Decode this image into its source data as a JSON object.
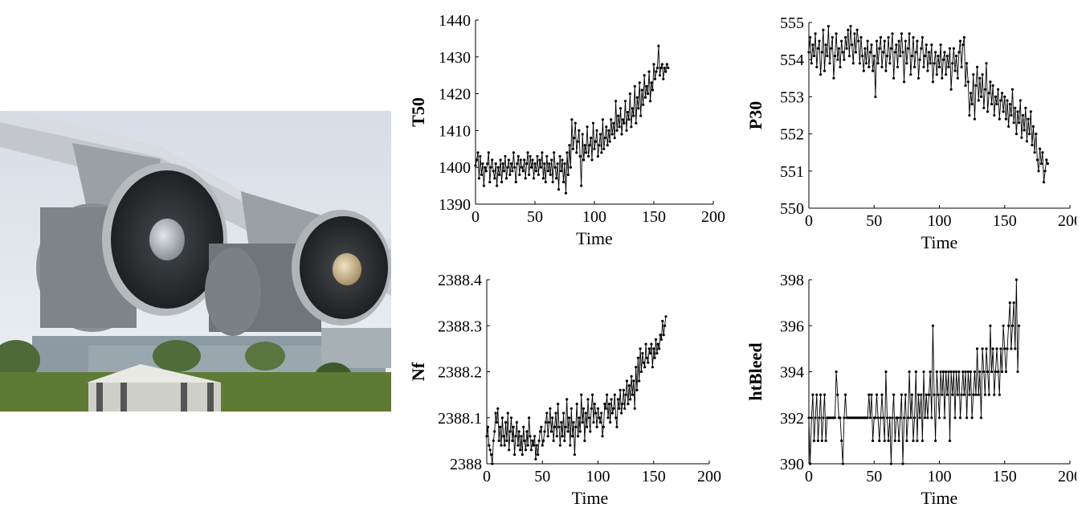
{
  "photo": {
    "subject": "twin turbofan jet engines under an aircraft wing",
    "colors": {
      "sky": "#dfe6ee",
      "grass": "#5f7a34",
      "nacelle": "#8a8f94",
      "spinner": "#c8b48a"
    }
  },
  "chart_data": [
    {
      "type": "line",
      "xlabel": "Time",
      "ylabel": "T50",
      "xlim": [
        0,
        200
      ],
      "ylim": [
        1390,
        1440
      ],
      "xticks": [
        0,
        50,
        100,
        150,
        200
      ],
      "yticks": [
        1390,
        1400,
        1410,
        1420,
        1430,
        1440
      ],
      "series": [
        {
          "values": [
            1400.5,
            1402,
            1404,
            1397,
            1403,
            1398,
            1401,
            1395,
            1400,
            1399,
            1401,
            1404,
            1396,
            1400,
            1402,
            1399,
            1397,
            1401,
            1395,
            1400,
            1398,
            1402,
            1396,
            1401,
            1399,
            1403,
            1397,
            1400,
            1402,
            1398,
            1401,
            1399,
            1404,
            1400,
            1396,
            1401,
            1403,
            1398,
            1402,
            1400,
            1399,
            1402,
            1397,
            1401,
            1404,
            1398,
            1403,
            1400,
            1402,
            1397,
            1401,
            1399,
            1403,
            1398,
            1402,
            1400,
            1404,
            1397,
            1401,
            1396,
            1403,
            1399,
            1401,
            1398,
            1402,
            1396,
            1404,
            1400,
            1397,
            1401,
            1394,
            1403,
            1399,
            1402,
            1396,
            1401,
            1393,
            1404,
            1398,
            1406,
            1400,
            1413,
            1405,
            1408,
            1412,
            1404,
            1407,
            1410,
            1403,
            1395,
            1409,
            1402,
            1406,
            1404,
            1411,
            1403,
            1406,
            1408,
            1402,
            1412,
            1405,
            1407,
            1410,
            1403,
            1406,
            1409,
            1404,
            1413,
            1405,
            1408,
            1411,
            1406,
            1410,
            1407,
            1413,
            1409,
            1412,
            1408,
            1418,
            1410,
            1414,
            1411,
            1416,
            1409,
            1413,
            1412,
            1418,
            1410,
            1415,
            1413,
            1420,
            1411,
            1416,
            1414,
            1422,
            1412,
            1419,
            1416,
            1423,
            1414,
            1421,
            1417,
            1425,
            1419,
            1422,
            1420,
            1426,
            1418,
            1423,
            1421,
            1428,
            1424,
            1426,
            1427,
            1433,
            1425,
            1427,
            1428,
            1424,
            1427,
            1426,
            1428,
            1427
          ]
        }
      ]
    },
    {
      "type": "line",
      "xlabel": "Time",
      "ylabel": "P30",
      "xlim": [
        0,
        200
      ],
      "ylim": [
        550,
        555
      ],
      "xticks": [
        0,
        50,
        100,
        150,
        200
      ],
      "yticks": [
        550,
        551,
        552,
        553,
        554,
        555
      ],
      "series": [
        {
          "values": [
            554.2,
            554.6,
            553.9,
            554.4,
            554.1,
            554.7,
            553.8,
            554.3,
            554.5,
            553.6,
            554.2,
            554.8,
            553.7,
            554.4,
            554.1,
            554.9,
            553.9,
            554.3,
            554.6,
            553.5,
            554.1,
            554.7,
            554.0,
            554.3,
            553.8,
            554.5,
            554.2,
            554.0,
            554.6,
            554.3,
            554.8,
            554.1,
            554.9,
            554.4,
            553.9,
            554.7,
            554.2,
            554.8,
            554.5,
            553.9,
            554.6,
            554.1,
            553.7,
            554.3,
            553.9,
            554.5,
            553.8,
            554.2,
            554.4,
            553.7,
            554.1,
            553.0,
            554.5,
            553.9,
            554.3,
            554.6,
            553.8,
            554.2,
            554.5,
            553.7,
            554.1,
            554.6,
            553.9,
            554.3,
            554.7,
            553.5,
            554.2,
            554.4,
            553.8,
            554.5,
            554.1,
            554.7,
            554.2,
            553.4,
            554.5,
            553.9,
            554.3,
            554.7,
            553.6,
            554.1,
            554.6,
            553.8,
            554.2,
            554.5,
            553.5,
            554.0,
            554.3,
            554.6,
            553.8,
            554.1,
            554.4,
            553.7,
            554.2,
            553.9,
            554.4,
            553.4,
            553.9,
            554.2,
            553.6,
            554.1,
            553.8,
            554.4,
            553.5,
            554.0,
            554.2,
            553.6,
            554.1,
            553.8,
            554.3,
            553.2,
            553.9,
            554.3,
            553.7,
            554.1,
            553.5,
            554.2,
            554.5,
            553.8,
            554.4,
            554.6,
            553.3,
            553.9,
            553.4,
            552.5,
            553.1,
            552.8,
            553.6,
            552.4,
            553.3,
            553.8,
            552.9,
            553.5,
            553.0,
            553.6,
            552.7,
            553.2,
            553.9,
            552.6,
            553.1,
            553.4,
            552.8,
            553.3,
            552.5,
            553.0,
            552.8,
            553.2,
            552.4,
            552.9,
            553.1,
            552.6,
            553.0,
            552.4,
            552.9,
            552.2,
            552.8,
            552.5,
            553.2,
            552.3,
            552.7,
            552.0,
            552.6,
            552.3,
            552.9,
            551.9,
            552.5,
            552.1,
            552.7,
            551.8,
            552.4,
            552.0,
            552.6,
            551.7,
            552.2,
            551.5,
            552.0,
            551.3,
            551.0,
            551.6,
            551.2,
            551.5,
            550.7,
            551.0,
            551.3,
            551.2
          ]
        }
      ]
    },
    {
      "type": "line",
      "xlabel": "Time",
      "ylabel": "Nf",
      "xlim": [
        0,
        200
      ],
      "ylim": [
        2388,
        2388.4
      ],
      "xticks": [
        0,
        50,
        100,
        150,
        200
      ],
      "yticks": [
        2388,
        2388.1,
        2388.2,
        2388.3,
        2388.4
      ],
      "ytick_labels": [
        "2388",
        "2388.1",
        "2388.2",
        "2388.3",
        "2388.4"
      ],
      "series": [
        {
          "values": [
            2388.06,
            2388.08,
            2388.04,
            2388.03,
            2388.02,
            2388.0,
            2388.05,
            2388.07,
            2388.11,
            2388.09,
            2388.12,
            2388.05,
            2388.08,
            2388.04,
            2388.1,
            2388.06,
            2388.04,
            2388.09,
            2388.05,
            2388.11,
            2388.03,
            2388.07,
            2388.1,
            2388.05,
            2388.08,
            2388.02,
            2388.06,
            2388.09,
            2388.04,
            2388.07,
            2388.03,
            2388.06,
            2388.02,
            2388.08,
            2388.05,
            2388.03,
            2388.07,
            2388.04,
            2388.1,
            2388.06,
            2388.03,
            2388.05,
            2388.04,
            2388.06,
            2388.01,
            2388.04,
            2388.02,
            2388.05,
            2388.07,
            2388.08,
            2388.04,
            2388.05,
            2388.07,
            2388.09,
            2388.11,
            2388.06,
            2388.09,
            2388.12,
            2388.07,
            2388.1,
            2388.05,
            2388.08,
            2388.11,
            2388.06,
            2388.13,
            2388.08,
            2388.04,
            2388.09,
            2388.06,
            2388.11,
            2388.05,
            2388.08,
            2388.14,
            2388.07,
            2388.1,
            2388.04,
            2388.12,
            2388.06,
            2388.09,
            2388.02,
            2388.08,
            2388.13,
            2388.06,
            2388.1,
            2388.07,
            2388.15,
            2388.09,
            2388.12,
            2388.05,
            2388.11,
            2388.08,
            2388.14,
            2388.1,
            2388.07,
            2388.12,
            2388.15,
            2388.09,
            2388.13,
            2388.11,
            2388.08,
            2388.12,
            2388.1,
            2388.09,
            2388.11,
            2388.06,
            2388.08,
            2388.13,
            2388.12,
            2388.15,
            2388.1,
            2388.13,
            2388.09,
            2388.14,
            2388.11,
            2388.12,
            2388.15,
            2388.1,
            2388.08,
            2388.14,
            2388.12,
            2388.16,
            2388.11,
            2388.13,
            2388.16,
            2388.12,
            2388.15,
            2388.18,
            2388.13,
            2388.17,
            2388.14,
            2388.19,
            2388.15,
            2388.18,
            2388.12,
            2388.21,
            2388.16,
            2388.23,
            2388.18,
            2388.25,
            2388.2,
            2388.24,
            2388.22,
            2388.21,
            2388.26,
            2388.23,
            2388.22,
            2388.25,
            2388.24,
            2388.26,
            2388.21,
            2388.25,
            2388.23,
            2388.27,
            2388.24,
            2388.26,
            2388.25,
            2388.28,
            2388.27,
            2388.31,
            2388.28,
            2388.3,
            2388.32
          ]
        }
      ]
    },
    {
      "type": "line",
      "xlabel": "Time",
      "ylabel": "htBleed",
      "xlim": [
        0,
        200
      ],
      "ylim": [
        390,
        398
      ],
      "xticks": [
        0,
        50,
        100,
        150,
        200
      ],
      "yticks": [
        390,
        392,
        394,
        396,
        398
      ],
      "series": [
        {
          "values": [
            392,
            390,
            392,
            393,
            391,
            392,
            393,
            391,
            392,
            393,
            391,
            392,
            393,
            391,
            392,
            392,
            392,
            392,
            392,
            392,
            392,
            394,
            393,
            392,
            392,
            391,
            390,
            392,
            393,
            392,
            392,
            392,
            392,
            392,
            392,
            392,
            392,
            392,
            392,
            392,
            392,
            392,
            392,
            392,
            392,
            392,
            393,
            392,
            393,
            391,
            392,
            392,
            393,
            392,
            391,
            392,
            393,
            392,
            391,
            394,
            392,
            391,
            392,
            390,
            392,
            393,
            391,
            392,
            392,
            391,
            392,
            393,
            390,
            392,
            393,
            391,
            392,
            394,
            392,
            393,
            391,
            392,
            394,
            391,
            393,
            392,
            393,
            391,
            394,
            392,
            393,
            392,
            393,
            394,
            392,
            396,
            393,
            391,
            394,
            393,
            392,
            394,
            393,
            394,
            392,
            394,
            393,
            394,
            391,
            394,
            393,
            394,
            392,
            394,
            393,
            394,
            392,
            393,
            394,
            393,
            394,
            392,
            394,
            393,
            394,
            392,
            393,
            394,
            393,
            395,
            393,
            394,
            392,
            395,
            394,
            393,
            395,
            394,
            393,
            396,
            394,
            395,
            393,
            394,
            395,
            394,
            393,
            395,
            394,
            396,
            395,
            394,
            395,
            396,
            397,
            395,
            396,
            397,
            395,
            398,
            394,
            396
          ]
        }
      ]
    }
  ]
}
